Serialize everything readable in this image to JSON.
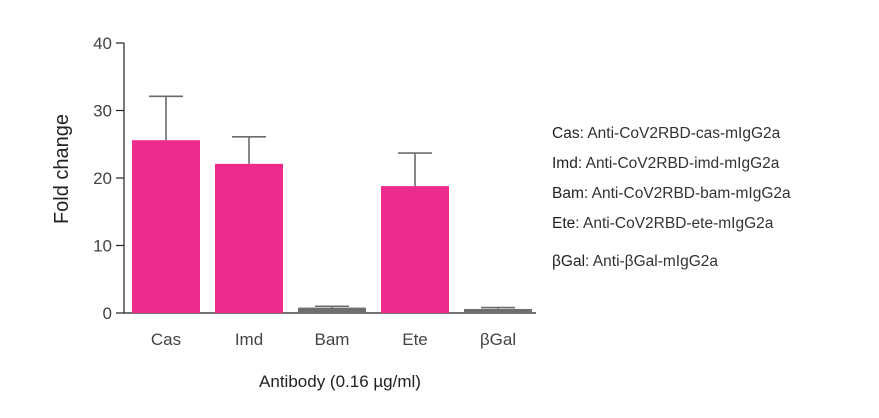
{
  "chart_data": {
    "type": "bar",
    "categories": [
      "Cas",
      "Imd",
      "Bam",
      "Ete",
      "βGal"
    ],
    "values": [
      25.6,
      22.1,
      0.8,
      18.8,
      0.6
    ],
    "error_upper": [
      32.1,
      26.1,
      1.0,
      23.7,
      0.8
    ],
    "ylim": [
      0,
      40
    ],
    "yticks": [
      0,
      10,
      20,
      30,
      40
    ],
    "xlabel": "Antibody (0.16 µg/ml)",
    "ylabel": "Fold change",
    "title": "",
    "grid": false,
    "colors": [
      "#ee2a8c",
      "#ee2a8c",
      "#6e6e6e",
      "#ee2a8c",
      "#6e6e6e"
    ],
    "error_color": "#6b6b6b",
    "legend_placement": "right",
    "legend": [
      {
        "key": "Cas",
        "text": ": Anti-CoV2RBD-cas-mIgG2a"
      },
      {
        "key": "Imd",
        "text": ": Anti-CoV2RBD-imd-mIgG2a"
      },
      {
        "key": "Bam",
        "text": ": Anti-CoV2RBD-bam-mIgG2a"
      },
      {
        "key": "Ete",
        "text": ": Anti-CoV2RBD-ete-mIgG2a"
      },
      {
        "key": "βGal",
        "text": ": Anti-βGal-mIgG2a"
      }
    ]
  }
}
